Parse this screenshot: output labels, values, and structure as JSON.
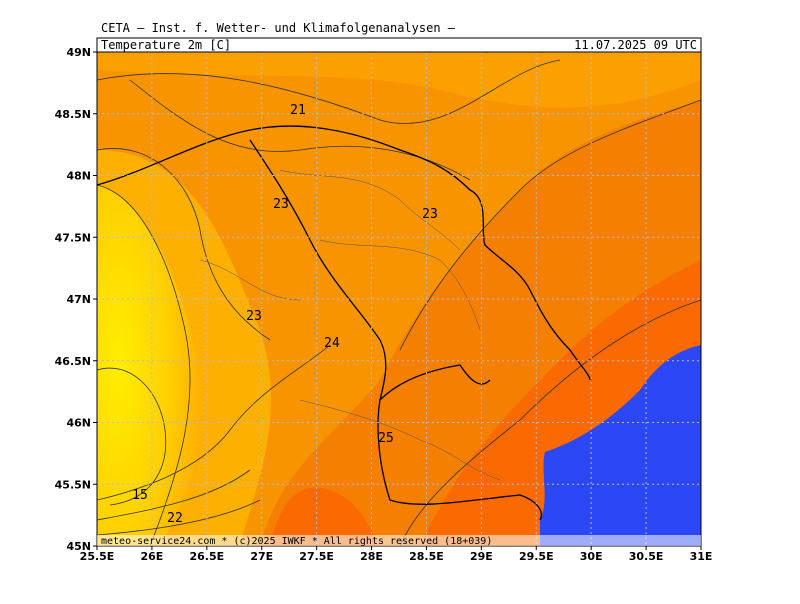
{
  "header": "CETA — Inst. f. Wetter- und Klimafolgenanalysen —",
  "field": "Temperature_2m_[C]",
  "valid_time": "11.07.2025 09 UTC",
  "footer": "meteo-service24.com * (c)2025 IWKF * All rights reserved (18+039)",
  "map": {
    "lon_ticks": [
      {
        "value": 25.5,
        "label": "25.5E"
      },
      {
        "value": 26,
        "label": "26E"
      },
      {
        "value": 26.5,
        "label": "26.5E"
      },
      {
        "value": 27,
        "label": "27E"
      },
      {
        "value": 27.5,
        "label": "27.5E"
      },
      {
        "value": 28,
        "label": "28E"
      },
      {
        "value": 28.5,
        "label": "28.5E"
      },
      {
        "value": 29,
        "label": "29E"
      },
      {
        "value": 29.5,
        "label": "29.5E"
      },
      {
        "value": 30,
        "label": "30E"
      },
      {
        "value": 30.5,
        "label": "30.5E"
      },
      {
        "value": 31,
        "label": "31E"
      }
    ],
    "lat_ticks": [
      {
        "value": 49,
        "label": "49N"
      },
      {
        "value": 48.5,
        "label": "48.5N"
      },
      {
        "value": 48,
        "label": "48N"
      },
      {
        "value": 47.5,
        "label": "47.5N"
      },
      {
        "value": 47,
        "label": "47N"
      },
      {
        "value": 46.5,
        "label": "46.5N"
      },
      {
        "value": 46,
        "label": "46N"
      },
      {
        "value": 45.5,
        "label": "45.5N"
      },
      {
        "value": 45,
        "label": "45N"
      }
    ],
    "contour_labels": [
      21,
      23,
      23,
      23,
      24,
      25,
      15,
      22
    ]
  }
}
